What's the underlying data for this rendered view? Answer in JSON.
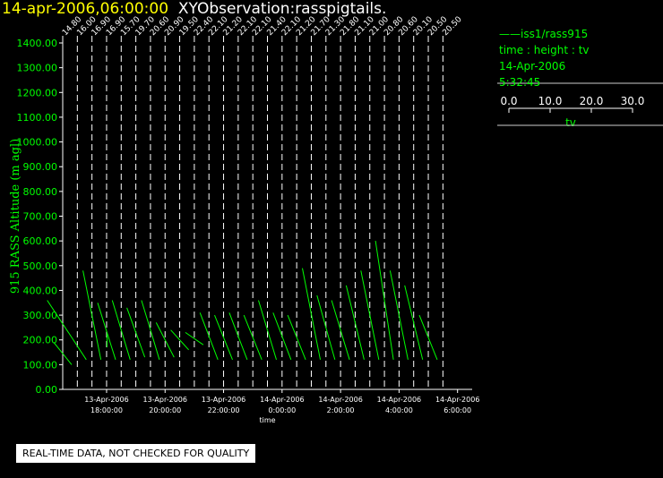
{
  "title": {
    "left": "14-apr-2006,06:00:00",
    "right": "XYObservation:rasspigtails."
  },
  "legend": {
    "series_label": "iss1/rass915",
    "axes_desc": "time : height : tv",
    "date": "14-Apr-2006",
    "time": "5:32:45",
    "scale_ticks": [
      "0.0",
      "10.0",
      "20.0",
      "30.0"
    ],
    "scale_label": "tv"
  },
  "quality_note": "REAL-TIME DATA, NOT CHECKED FOR QUALITY",
  "colors": {
    "series": "#00ff00",
    "axis": "#ffffff",
    "title_left": "#ffff00",
    "title_right": "#ffffff"
  },
  "chart_data": {
    "type": "line",
    "xlabel": "time",
    "ylabel": "915 RASS Altitude (m agl)",
    "ylim": [
      0,
      1400
    ],
    "yticks": [
      "0.00",
      "100.00",
      "200.00",
      "300.00",
      "400.00",
      "500.00",
      "600.00",
      "700.00",
      "800.00",
      "900.00",
      "1000.00",
      "1100.00",
      "1200.00",
      "1300.00",
      "1400.00"
    ],
    "xlim": [
      "2006-04-13 16:30",
      "2006-04-14 06:30"
    ],
    "xticks": [
      {
        "t": "2006-04-13 18:00",
        "d": "13-Apr-2006",
        "h": "18:00:00"
      },
      {
        "t": "2006-04-13 20:00",
        "d": "13-Apr-2006",
        "h": "20:00:00"
      },
      {
        "t": "2006-04-13 22:00",
        "d": "13-Apr-2006",
        "h": "22:00:00"
      },
      {
        "t": "2006-04-14 00:00",
        "d": "14-Apr-2006",
        "h": "0:00:00"
      },
      {
        "t": "2006-04-14 02:00",
        "d": "14-Apr-2006",
        "h": "2:00:00"
      },
      {
        "t": "2006-04-14 04:00",
        "d": "14-Apr-2006",
        "h": "4:00:00"
      },
      {
        "t": "2006-04-14 06:00",
        "d": "14-Apr-2006",
        "h": "6:00:00"
      }
    ],
    "profiles": [
      {
        "time": "2006-04-13 16:30",
        "label": "14.80",
        "segs": [
          [
            [
              190,
              100
            ],
            [
              160,
              160
            ],
            [
              100,
              230
            ]
          ]
        ]
      },
      {
        "time": "2006-04-13 17:00",
        "label": "16.00",
        "segs": [
          [
            [
              230,
              100
            ],
            [
              300,
              240
            ],
            [
              360,
              260
            ],
            [
              210,
              270
            ],
            [
              120,
              300
            ]
          ]
        ]
      },
      {
        "time": "2006-04-13 17:30",
        "label": "16.90",
        "segs": [
          [
            [
              480,
              245
            ],
            [
              300,
              255
            ],
            [
              240,
              285
            ],
            [
              120,
              300
            ]
          ]
        ]
      },
      {
        "time": "2006-04-13 18:00",
        "label": "16.90",
        "segs": [
          [
            [
              200,
              275
            ]
          ],
          [
            [
              350,
              270
            ],
            [
              120,
              290
            ]
          ]
        ]
      },
      {
        "time": "2006-04-13 18:30",
        "label": "15.70",
        "segs": [
          [
            [
              360,
              245
            ],
            [
              260,
              258
            ],
            [
              200,
              262
            ],
            [
              120,
              300
            ]
          ]
        ]
      },
      {
        "time": "2006-04-13 19:00",
        "label": "19.70",
        "segs": [
          [
            [
              330,
              250
            ],
            [
              150,
              265
            ],
            [
              130,
              275
            ]
          ]
        ]
      },
      {
        "time": "2006-04-13 19:30",
        "label": "20.60",
        "segs": [
          [
            [
              360,
              245
            ],
            [
              260,
              258
            ],
            [
              200,
              262
            ],
            [
              120,
              300
            ]
          ]
        ]
      },
      {
        "time": "2006-04-13 20:00",
        "label": "20.90",
        "segs": [
          [
            [
              270,
              258
            ],
            [
              130,
              285
            ]
          ]
        ]
      },
      {
        "time": "2006-04-13 20:30",
        "label": "19.50",
        "segs": [
          [
            [
              240,
              262
            ],
            [
              190,
              282
            ],
            [
              160,
              300
            ]
          ]
        ]
      },
      {
        "time": "2006-04-13 21:00",
        "label": "22.40",
        "segs": [
          [
            [
              230,
              265
            ],
            [
              180,
              283
            ]
          ]
        ]
      },
      {
        "time": "2006-04-13 21:30",
        "label": "22.10",
        "segs": [
          [
            [
              310,
              245
            ],
            [
              200,
              260
            ],
            [
              120,
              300
            ]
          ]
        ]
      },
      {
        "time": "2006-04-13 22:00",
        "label": "21.20",
        "segs": [
          [
            [
              300,
              250
            ],
            [
              200,
              265
            ],
            [
              120,
              300
            ]
          ]
        ]
      },
      {
        "time": "2006-04-13 22:30",
        "label": "22.10",
        "segs": [
          [
            [
              310,
              245
            ],
            [
              200,
              260
            ],
            [
              120,
              300
            ]
          ]
        ]
      },
      {
        "time": "2006-04-13 23:00",
        "label": "22.10",
        "segs": [
          [
            [
              300,
              250
            ],
            [
              200,
              262
            ],
            [
              120,
              300
            ]
          ]
        ]
      },
      {
        "time": "2006-04-13 23:30",
        "label": "21.40",
        "segs": [
          [
            [
              360,
              245
            ],
            [
              260,
              258
            ],
            [
              200,
              262
            ],
            [
              120,
              300
            ]
          ]
        ]
      },
      {
        "time": "2006-04-14 00:00",
        "label": "22.10",
        "segs": [
          [
            [
              310,
              245
            ],
            [
              200,
              260
            ],
            [
              120,
              300
            ]
          ]
        ]
      },
      {
        "time": "2006-04-14 00:30",
        "label": "21.20",
        "segs": [
          [
            [
              300,
              250
            ],
            [
              200,
              262
            ],
            [
              120,
              300
            ]
          ]
        ]
      },
      {
        "time": "2006-04-14 01:00",
        "label": "21.70",
        "segs": [
          [
            [
              490,
              240
            ],
            [
              360,
              258
            ],
            [
              250,
              265
            ],
            [
              120,
              300
            ]
          ]
        ]
      },
      {
        "time": "2006-04-14 01:30",
        "label": "21.30",
        "segs": [
          [
            [
              380,
              245
            ],
            [
              200,
              265
            ],
            [
              120,
              300
            ]
          ]
        ]
      },
      {
        "time": "2006-04-14 02:00",
        "label": "21.80",
        "segs": [
          [
            [
              360,
              245
            ],
            [
              200,
              265
            ],
            [
              120,
              300
            ]
          ]
        ]
      },
      {
        "time": "2006-04-14 02:30",
        "label": "21.10",
        "segs": [
          [
            [
              420,
              245
            ],
            [
              200,
              265
            ],
            [
              120,
              300
            ]
          ]
        ]
      },
      {
        "time": "2006-04-14 03:00",
        "label": "21.00",
        "segs": [
          [
            [
              480,
              245
            ],
            [
              300,
              258
            ],
            [
              120,
              300
            ]
          ]
        ]
      },
      {
        "time": "2006-04-14 03:30",
        "label": "20.80",
        "segs": [
          [
            [
              600,
              245
            ],
            [
              400,
              258
            ],
            [
              120,
              300
            ]
          ]
        ]
      },
      {
        "time": "2006-04-14 04:00",
        "label": "20.60",
        "segs": [
          [
            [
              480,
              245
            ],
            [
              300,
              258
            ],
            [
              200,
              262
            ],
            [
              120,
              300
            ]
          ]
        ]
      },
      {
        "time": "2006-04-14 04:30",
        "label": "20.10",
        "segs": [
          [
            [
              420,
              245
            ],
            [
              300,
              258
            ],
            [
              200,
              262
            ],
            [
              120,
              300
            ]
          ]
        ]
      },
      {
        "time": "2006-04-14 05:00",
        "label": "20.50",
        "segs": [
          [
            [
              300,
              245
            ],
            [
              200,
              258
            ],
            [
              120,
              300
            ]
          ]
        ]
      },
      {
        "time": "2006-04-14 05:30",
        "label": "20.50",
        "segs": []
      }
    ]
  }
}
